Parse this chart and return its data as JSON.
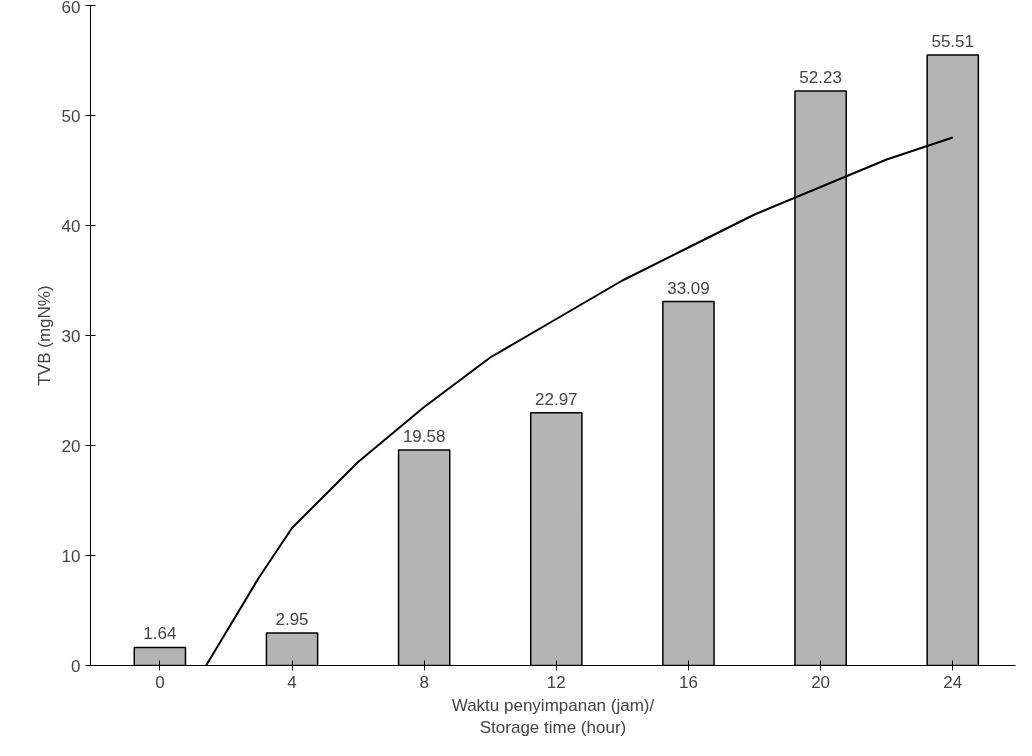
{
  "chart_data": {
    "type": "bar",
    "xlabel": "Waktu penyimpanan (jam)/\nStorage time (hour)",
    "ylabel": "TVB (mgN%)",
    "x": [
      0,
      4,
      8,
      12,
      16,
      20,
      24
    ],
    "series": [
      {
        "color": "#b4b4b4",
        "values": [
          1.64,
          2.95,
          19.58,
          22.97,
          33.09,
          52.23,
          55.51
        ],
        "value_labels": [
          "1.64",
          "2.95",
          "19.58",
          "22.97",
          "33.09",
          "52.23",
          "55.51"
        ]
      },
      {
        "type": "line",
        "color": "#000000",
        "x": [
          1.4,
          2,
          3,
          4,
          6,
          8,
          10,
          12,
          14,
          16,
          18,
          20,
          22,
          24
        ],
        "values": [
          0,
          3,
          8,
          12.5,
          18.5,
          23.5,
          28,
          31.5,
          35,
          38,
          41,
          43.5,
          46,
          48
        ]
      }
    ],
    "xlim": [
      -2.1,
      25.9
    ],
    "ylim": [
      0,
      60
    ],
    "xticks": [
      0,
      4,
      8,
      12,
      16,
      20,
      24
    ],
    "yticks": [
      0,
      10,
      20,
      30,
      40,
      50,
      60
    ],
    "grid": false,
    "marker": "none",
    "line_style": "solid"
  }
}
